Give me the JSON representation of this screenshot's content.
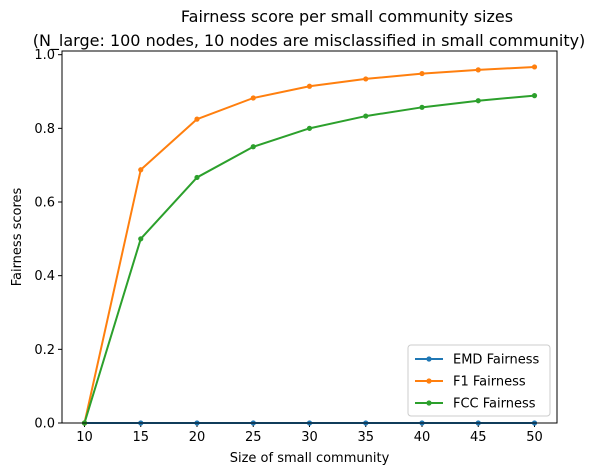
{
  "chart_data": {
    "type": "line",
    "title_line1": "Fairness score per small community sizes",
    "title_line2": "(N_large: 100 nodes, 10 nodes are misclassified in small community)",
    "xlabel": "Size of small community",
    "ylabel": "Fairness scores",
    "x": [
      10,
      15,
      20,
      25,
      30,
      35,
      40,
      45,
      50
    ],
    "xticks": [
      10,
      15,
      20,
      25,
      30,
      35,
      40,
      45,
      50
    ],
    "yticks": [
      0.0,
      0.2,
      0.4,
      0.6,
      0.8,
      1.0
    ],
    "ytick_labels": [
      "0.0",
      "0.2",
      "0.4",
      "0.6",
      "0.8",
      "1.0"
    ],
    "xlim": [
      8,
      52
    ],
    "ylim": [
      0,
      1.01
    ],
    "grid": false,
    "legend_position": "lower-right",
    "series": [
      {
        "name": "EMD Fairness",
        "color": "#1f77b4",
        "values": [
          0,
          0,
          0,
          0,
          0,
          0,
          0,
          0,
          0
        ]
      },
      {
        "name": "F1 Fairness",
        "color": "#ff7f0e",
        "values": [
          0,
          0.6875,
          0.825,
          0.8824,
          0.9143,
          0.9342,
          0.9487,
          0.9588,
          0.9667
        ]
      },
      {
        "name": "FCC Fairness",
        "color": "#2ca02c",
        "values": [
          0,
          0.5,
          0.6667,
          0.75,
          0.8,
          0.8333,
          0.8571,
          0.875,
          0.8889
        ]
      }
    ]
  }
}
